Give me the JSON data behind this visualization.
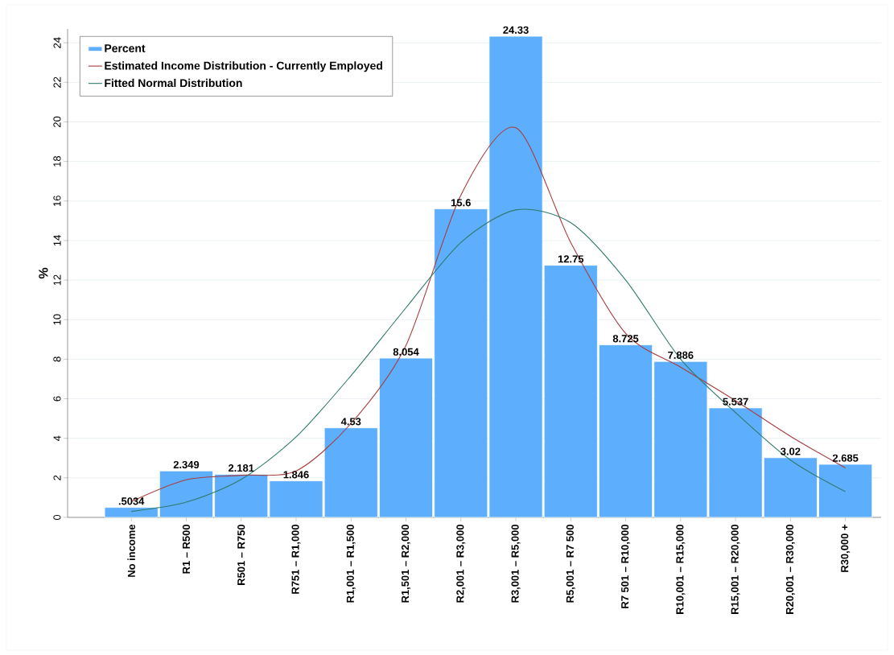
{
  "chart_data": {
    "type": "bar",
    "ylabel": "%",
    "categories": [
      "No income",
      "R1 – R500",
      "R501 – R750",
      "R751 – R1,000",
      "R1,001 – R1,500",
      "R1,501 – R2,000",
      "R2,001 – R3,000",
      "R3,001 – R5,000",
      "R5,001 – R7 500",
      "R7 501 – R10,000",
      "R10,001 – R15,000",
      "R15,001 – R20,000",
      "R20,001 – R30,000",
      "R30,000 +"
    ],
    "series": [
      {
        "name": "Percent",
        "color": "#5eaefe",
        "values": [
          0.5034,
          2.349,
          2.181,
          1.846,
          4.53,
          8.054,
          15.6,
          24.33,
          12.75,
          8.725,
          7.886,
          5.537,
          3.02,
          2.685
        ],
        "value_labels": [
          ".5034",
          "2.349",
          "2.181",
          "1.846",
          "4.53",
          "8.054",
          "15.6",
          "24.33",
          "12.75",
          "8.725",
          "7.886",
          "5.537",
          "3.02",
          "2.685"
        ]
      },
      {
        "name": "Estimated Income Distribution - Currently Employed",
        "type": "line",
        "color": "#a83c3c",
        "values": [
          0.8,
          1.9,
          2.13,
          2.35,
          4.75,
          8.7,
          16.3,
          19.7,
          13.9,
          9.3,
          7.6,
          5.9,
          4.1,
          2.5
        ]
      },
      {
        "name": "Fitted Normal Distribution",
        "type": "line",
        "color": "#2e7a6c",
        "values": [
          0.3,
          0.77,
          1.92,
          4.07,
          7.17,
          10.6,
          13.9,
          15.55,
          14.9,
          12.0,
          8.0,
          5.3,
          2.9,
          1.3
        ]
      }
    ],
    "ylim": [
      0,
      24.7
    ],
    "yticks": [
      0,
      2,
      4,
      6,
      8,
      10,
      12,
      14,
      16,
      18,
      20,
      22,
      24
    ],
    "grid": "y",
    "legend": "top left"
  }
}
